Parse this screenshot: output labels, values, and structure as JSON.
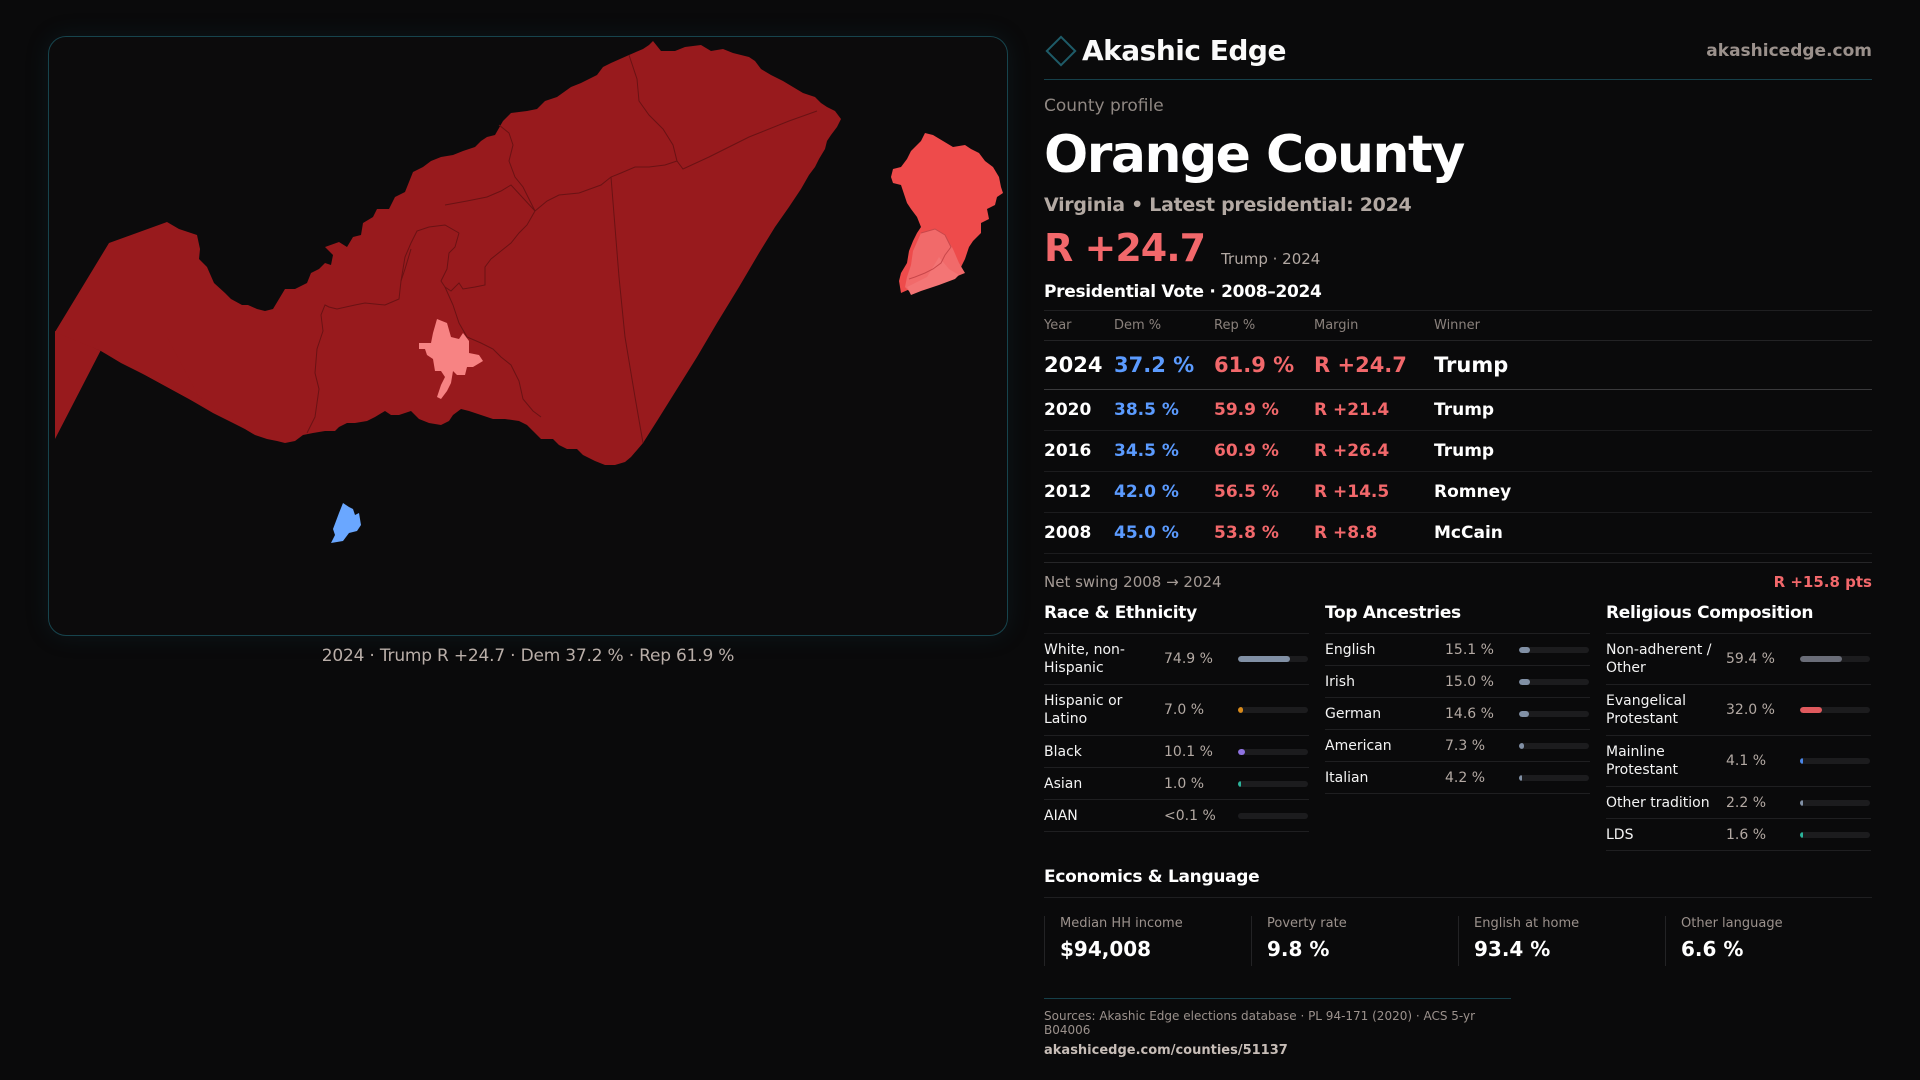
{
  "map": {
    "caption": "2024 · Trump R +24.7 · Dem 37.2 % · Rep 61.9 %",
    "colors": {
      "strong_rep": "#981a1d",
      "lean_rep": "#ee4b4b",
      "light_rep": "#f16a6a",
      "town_rep": "#f78383",
      "dem": "#6aa7ff",
      "boundary": "#6a1214"
    }
  },
  "brand": {
    "name": "Akashic Edge",
    "url": "akashicedge.com",
    "logo_icon": "diamond-outline-icon"
  },
  "profile": {
    "kicker": "County profile",
    "title": "Orange County",
    "subtitle": "Virginia • Latest presidential: 2024",
    "headline_margin": "R +24.7",
    "headline_meta": "Trump · 2024"
  },
  "vote": {
    "title": "Presidential Vote · 2008–2024",
    "headers": [
      "Year",
      "Dem %",
      "Rep %",
      "Margin",
      "Winner"
    ],
    "rows": [
      {
        "year": "2024",
        "dem": "37.2 %",
        "rep": "61.9 %",
        "margin": "R +24.7",
        "winner": "Trump"
      },
      {
        "year": "2020",
        "dem": "38.5 %",
        "rep": "59.9 %",
        "margin": "R +21.4",
        "winner": "Trump"
      },
      {
        "year": "2016",
        "dem": "34.5 %",
        "rep": "60.9 %",
        "margin": "R +26.4",
        "winner": "Trump"
      },
      {
        "year": "2012",
        "dem": "42.0 %",
        "rep": "56.5 %",
        "margin": "R +14.5",
        "winner": "Romney"
      },
      {
        "year": "2008",
        "dem": "45.0 %",
        "rep": "53.8 %",
        "margin": "R +8.8",
        "winner": "McCain"
      }
    ],
    "swing_label": "Net swing 2008 → 2024",
    "swing_value": "R +15.8 pts",
    "colors": {
      "dem": "#5b9bff",
      "rep": "#f2686b"
    }
  },
  "race": {
    "title": "Race & Ethnicity",
    "rows": [
      {
        "label": "White, non-Hispanic",
        "value": "74.9 %",
        "pct": 74.9,
        "color": "#8190a5",
        "tall": true
      },
      {
        "label": "Hispanic or Latino",
        "value": "7.0 %",
        "pct": 7.0,
        "color": "#d98a1a",
        "tall": true
      },
      {
        "label": "Black",
        "value": "10.1 %",
        "pct": 10.1,
        "color": "#8e72e0",
        "tall": false
      },
      {
        "label": "Asian",
        "value": "1.0 %",
        "pct": 1.0,
        "color": "#2bb39a",
        "tall": false
      },
      {
        "label": "AIAN",
        "value": "<0.1 %",
        "pct": 0.05,
        "color": "#b0684a",
        "tall": false
      }
    ]
  },
  "ancestry": {
    "title": "Top Ancestries",
    "rows": [
      {
        "label": "English",
        "value": "15.1 %",
        "pct": 15.1,
        "color": "#8190a5"
      },
      {
        "label": "Irish",
        "value": "15.0 %",
        "pct": 15.0,
        "color": "#8190a5"
      },
      {
        "label": "German",
        "value": "14.6 %",
        "pct": 14.6,
        "color": "#8190a5"
      },
      {
        "label": "American",
        "value": "7.3 %",
        "pct": 7.3,
        "color": "#8190a5"
      },
      {
        "label": "Italian",
        "value": "4.2 %",
        "pct": 4.2,
        "color": "#8190a5"
      }
    ]
  },
  "religion": {
    "title": "Religious Composition",
    "rows": [
      {
        "label": "Non-adherent / Other",
        "value": "59.4 %",
        "pct": 59.4,
        "color": "#6a6d78",
        "tall": true
      },
      {
        "label": "Evangelical Protestant",
        "value": "32.0 %",
        "pct": 32.0,
        "color": "#e05a5e",
        "tall": true
      },
      {
        "label": "Mainline Protestant",
        "value": "4.1 %",
        "pct": 4.1,
        "color": "#4a86e8",
        "tall": true
      },
      {
        "label": "Other tradition",
        "value": "2.2 %",
        "pct": 2.2,
        "color": "#8190a5",
        "tall": false
      },
      {
        "label": "LDS",
        "value": "1.6 %",
        "pct": 1.6,
        "color": "#2bb39a",
        "tall": false
      }
    ]
  },
  "economics": {
    "title": "Economics & Language",
    "cells": [
      {
        "label": "Median HH income",
        "value": "$94,008"
      },
      {
        "label": "Poverty rate",
        "value": "9.8 %"
      },
      {
        "label": "English at home",
        "value": "93.4 %"
      },
      {
        "label": "Other language",
        "value": "6.6 %"
      }
    ]
  },
  "footer": {
    "sources": "Sources: Akashic Edge elections database · PL 94-171 (2020) · ACS 5-yr B04006",
    "url": "akashicedge.com/counties/51137"
  }
}
